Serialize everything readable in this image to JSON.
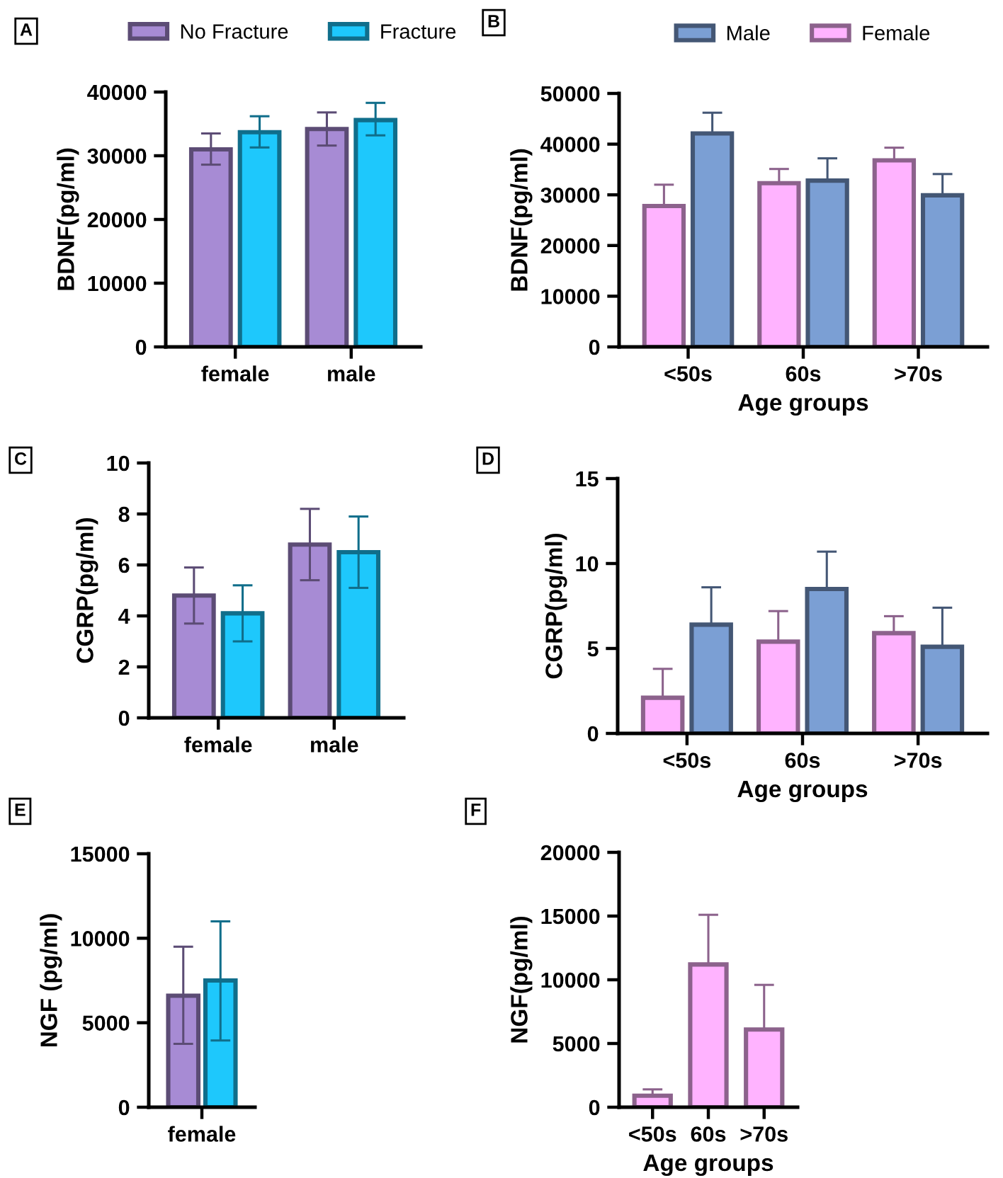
{
  "chart_data": [
    {
      "type": "bar",
      "categories": [
        "female",
        "male"
      ],
      "ylabel": "BDNF(pg/ml)",
      "ylim": [
        0,
        40000
      ],
      "yticks": [
        0,
        10000,
        20000,
        30000,
        40000
      ],
      "legend": "top",
      "grid": false,
      "annotations": [
        "A"
      ],
      "series": [
        {
          "name": "No Fracture",
          "color": "#a78bd4",
          "values": [
            31000,
            34200
          ],
          "errors": [
            [
              28600,
              33500
            ],
            [
              31600,
              36800
            ]
          ]
        },
        {
          "name": "Fracture",
          "color": "#1ec8fc",
          "values": [
            33700,
            35600
          ],
          "errors": [
            [
              31300,
              36200
            ],
            [
              33200,
              38300
            ]
          ]
        }
      ]
    },
    {
      "type": "bar",
      "categories": [
        "<50s",
        "60s",
        ">70s"
      ],
      "xlabel": "Age groups",
      "ylabel": "BDNF(pg/ml)",
      "ylim": [
        0,
        50000
      ],
      "yticks": [
        0,
        10000,
        20000,
        30000,
        40000,
        50000
      ],
      "legend": "top",
      "grid": false,
      "annotations": [
        "B"
      ],
      "series": [
        {
          "name": "Female",
          "color": "#ffb3ff",
          "values": [
            27800,
            32300,
            36800
          ],
          "errors": [
            [
              27800,
              32000
            ],
            [
              32300,
              35100
            ],
            [
              36800,
              39300
            ]
          ]
        },
        {
          "name": "Male",
          "color": "#7b9fd4",
          "values": [
            42100,
            32800,
            29900
          ],
          "errors": [
            [
              42100,
              46200
            ],
            [
              32800,
              37200
            ],
            [
              29900,
              34100
            ]
          ]
        }
      ]
    },
    {
      "type": "bar",
      "categories": [
        "female",
        "male"
      ],
      "ylabel": "CGRP(pg/ml)",
      "ylim": [
        0,
        10
      ],
      "yticks": [
        0,
        2,
        4,
        6,
        8,
        10
      ],
      "grid": false,
      "annotations": [
        "C"
      ],
      "series": [
        {
          "color": "#a78bd4",
          "values": [
            4.8,
            6.8
          ],
          "errors": [
            [
              3.7,
              5.9
            ],
            [
              5.4,
              8.2
            ]
          ]
        },
        {
          "color": "#1ec8fc",
          "values": [
            4.1,
            6.5
          ],
          "errors": [
            [
              3.0,
              5.2
            ],
            [
              5.1,
              7.9
            ]
          ]
        }
      ]
    },
    {
      "type": "bar",
      "categories": [
        "<50s",
        "60s",
        ">70s"
      ],
      "xlabel": "Age groups",
      "ylabel": "CGRP(pg/ml)",
      "ylim": [
        0,
        15
      ],
      "yticks": [
        0,
        5,
        10,
        15
      ],
      "grid": false,
      "annotations": [
        "D"
      ],
      "series": [
        {
          "color": "#ffb3ff",
          "values": [
            2.1,
            5.4,
            5.9
          ],
          "errors": [
            [
              2.1,
              3.8
            ],
            [
              5.4,
              7.2
            ],
            [
              5.9,
              6.9
            ]
          ]
        },
        {
          "color": "#7b9fd4",
          "values": [
            6.4,
            8.5,
            5.1
          ],
          "errors": [
            [
              6.4,
              8.6
            ],
            [
              8.5,
              10.7
            ],
            [
              5.1,
              7.4
            ]
          ]
        }
      ]
    },
    {
      "type": "bar",
      "categories": [
        "female"
      ],
      "ylabel": "NGF (pg/ml)",
      "ylim": [
        0,
        15000
      ],
      "yticks": [
        0,
        5000,
        10000,
        15000
      ],
      "grid": false,
      "annotations": [
        "E"
      ],
      "series": [
        {
          "color": "#a78bd4",
          "values": [
            6600
          ],
          "errors": [
            [
              3750,
              9500
            ]
          ]
        },
        {
          "color": "#1ec8fc",
          "values": [
            7500
          ],
          "errors": [
            [
              3950,
              11000
            ]
          ]
        }
      ]
    },
    {
      "type": "bar",
      "categories": [
        "<50s",
        "60s",
        ">70s"
      ],
      "xlabel": "Age groups",
      "ylabel": "NGF(pg/ml)",
      "ylim": [
        0,
        20000
      ],
      "yticks": [
        0,
        5000,
        10000,
        15000,
        20000
      ],
      "grid": false,
      "annotations": [
        "F"
      ],
      "series": [
        {
          "color": "#ffb3ff",
          "values": [
            900,
            11200,
            6100
          ],
          "errors": [
            [
              900,
              1400
            ],
            [
              11200,
              15100
            ],
            [
              6100,
              9600
            ]
          ]
        }
      ]
    }
  ]
}
